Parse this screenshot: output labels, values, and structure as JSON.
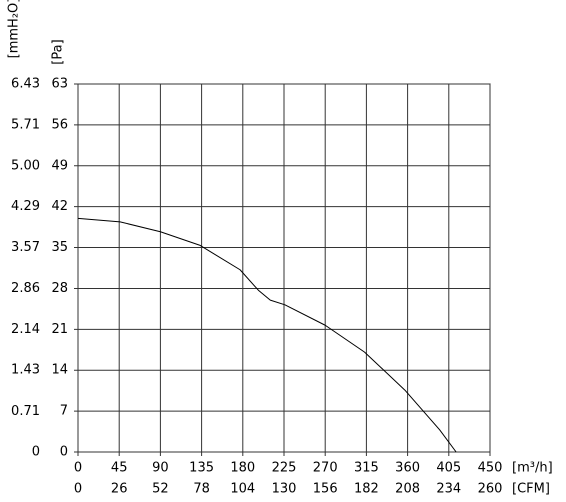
{
  "chart_data": {
    "type": "line",
    "x_label": "[m³/h]",
    "x2_label": "[CFM]",
    "y_label": "[Pa]",
    "y2_label": "[mmH₂O]",
    "xlim": [
      0,
      450
    ],
    "xticks": [
      0,
      45,
      90,
      135,
      180,
      225,
      270,
      315,
      360,
      405,
      450
    ],
    "x2lim": [
      0,
      260
    ],
    "x2ticks": [
      0,
      26,
      52,
      78,
      104,
      130,
      156,
      182,
      208,
      234,
      260
    ],
    "ylim": [
      0,
      63
    ],
    "yticks": [
      0,
      7,
      14,
      21,
      28,
      35,
      42,
      49,
      56,
      63
    ],
    "y2lim": [
      0,
      6.43
    ],
    "y2ticks": [
      0,
      0.71,
      1.43,
      2.14,
      2.86,
      3.57,
      4.29,
      {
        "value": 5,
        "label": "5.00"
      },
      5.71,
      6.43
    ],
    "grid": true,
    "series": [
      {
        "color": "#000000",
        "x": [
          0,
          46,
          90,
          133,
          177,
          197,
          210,
          226,
          270,
          313,
          357,
          395,
          413
        ],
        "values": [
          40,
          39.4,
          37.7,
          35.4,
          31.2,
          27.7,
          26,
          25.2,
          21.7,
          17.1,
          10.6,
          3.8,
          0
        ]
      }
    ]
  }
}
